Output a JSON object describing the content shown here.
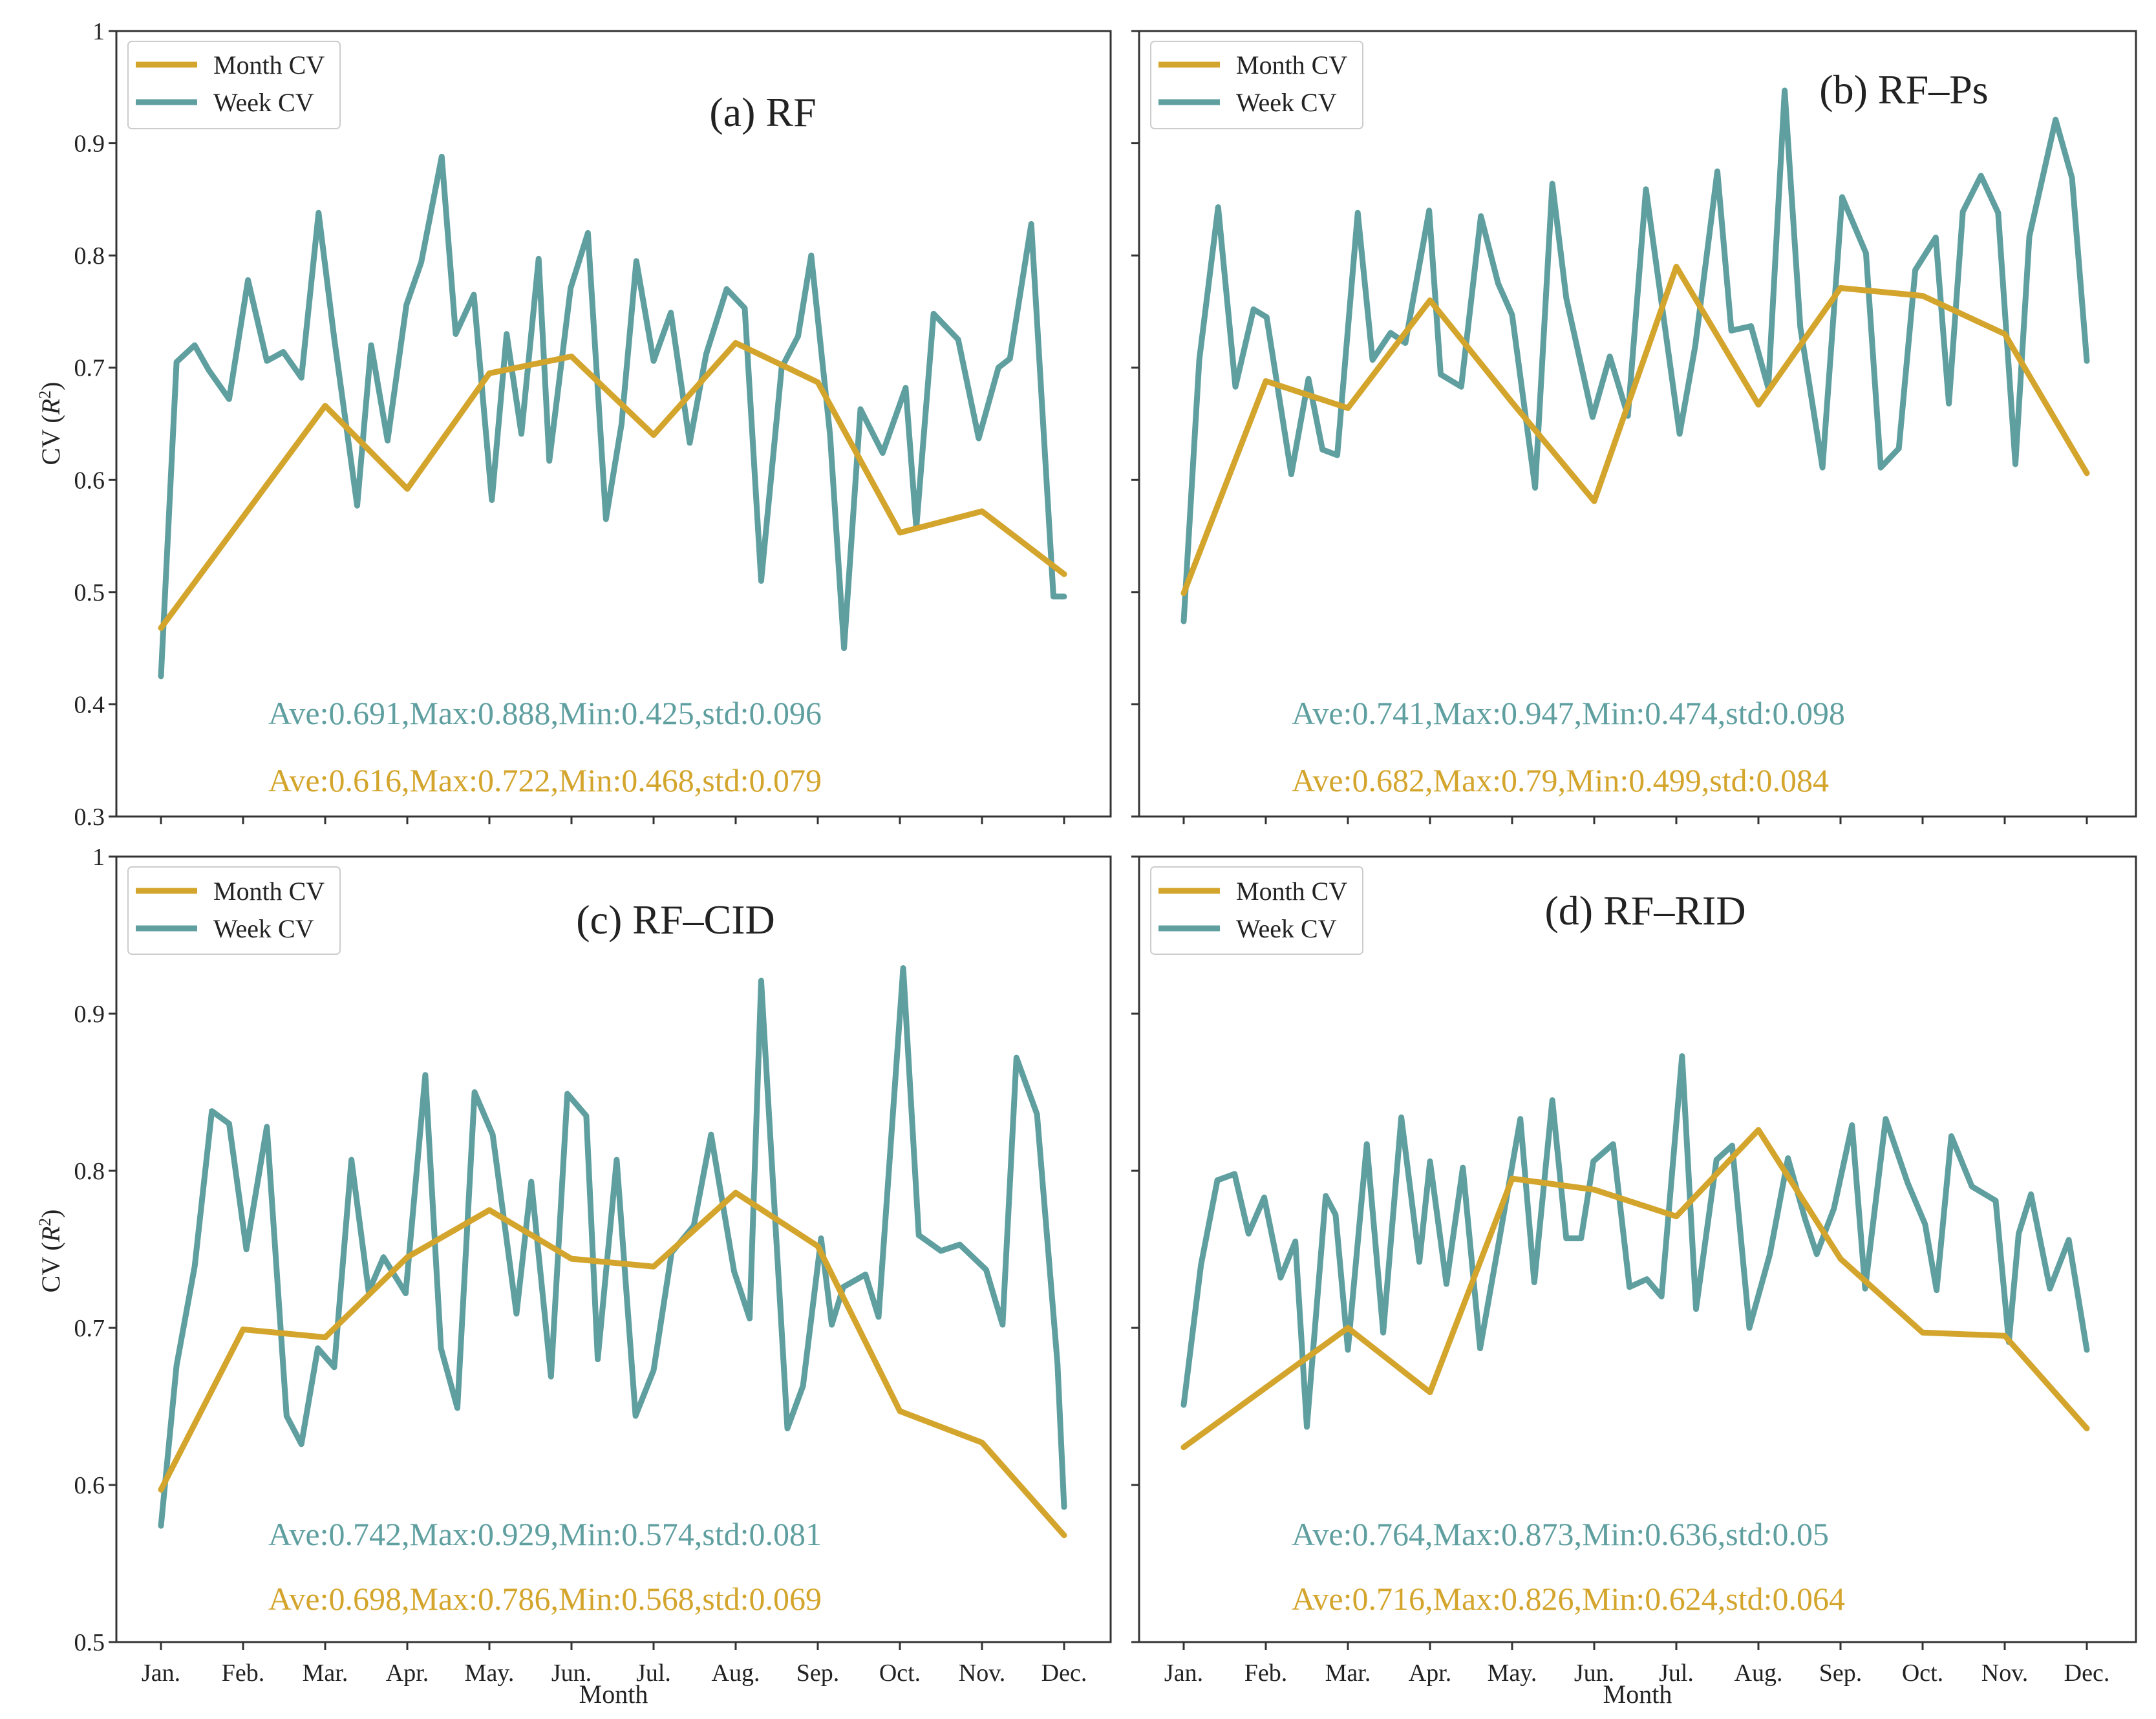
{
  "figure": {
    "xlabel": "Month",
    "ylabel_prefix": "CV (",
    "ylabel_var": "R",
    "ylabel_sup": "2",
    "ylabel_suffix": ")"
  },
  "colors": {
    "month_cv": "#D4A52C",
    "week_cv": "#5F9FA0"
  },
  "chart_data": [
    {
      "type": "line",
      "title": "(a) RF",
      "xlabel": "",
      "ylabel": "CV (R2)",
      "ylim": [
        0.3,
        1.0
      ],
      "yticks": [
        0.3,
        0.4,
        0.5,
        0.6,
        0.7,
        0.8,
        0.9,
        1.0
      ],
      "ytick_labels": [
        "0.3",
        "0.4",
        "0.5",
        "0.6",
        "0.7",
        "0.8",
        "0.9",
        "1"
      ],
      "x_range": [
        0.5,
        11.5
      ],
      "x_ticks": [
        0,
        1,
        2,
        3,
        4,
        5,
        6,
        7,
        8,
        9,
        10,
        11
      ],
      "x_tick_labels": [],
      "legend": [
        "Month CV",
        "Week CV"
      ],
      "series": [
        {
          "name": "Month CV",
          "x": [
            0,
            2,
            3,
            4,
            5,
            6,
            7,
            8,
            9,
            10,
            11
          ],
          "values": [
            0.468,
            0.666,
            0.592,
            0.695,
            0.71,
            0.64,
            0.722,
            0.687,
            0.553,
            0.572,
            0.516
          ]
        },
        {
          "name": "Week CV",
          "x": [
            0.0,
            0.19,
            0.41,
            0.58,
            0.83,
            1.06,
            1.29,
            1.49,
            1.71,
            1.92,
            2.11,
            2.39,
            2.56,
            2.76,
            2.99,
            3.17,
            3.42,
            3.59,
            3.81,
            4.03,
            4.21,
            4.39,
            4.6,
            4.73,
            4.99,
            5.2,
            5.42,
            5.61,
            5.79,
            6.0,
            6.21,
            6.44,
            6.64,
            6.89,
            7.11,
            7.31,
            7.56,
            7.76,
            7.92,
            8.15,
            8.32,
            8.52,
            8.79,
            9.07,
            9.2,
            9.41,
            9.71,
            9.96,
            10.2,
            10.34,
            10.6,
            10.87,
            11.0
          ],
          "values": [
            0.425,
            0.705,
            0.72,
            0.698,
            0.672,
            0.778,
            0.706,
            0.714,
            0.691,
            0.838,
            0.726,
            0.577,
            0.72,
            0.635,
            0.756,
            0.794,
            0.888,
            0.73,
            0.765,
            0.582,
            0.73,
            0.641,
            0.797,
            0.617,
            0.771,
            0.82,
            0.565,
            0.65,
            0.795,
            0.706,
            0.749,
            0.633,
            0.712,
            0.77,
            0.753,
            0.51,
            0.7,
            0.728,
            0.8,
            0.64,
            0.45,
            0.663,
            0.624,
            0.682,
            0.557,
            0.748,
            0.725,
            0.637,
            0.7,
            0.708,
            0.828,
            0.496,
            0.496
          ]
        }
      ],
      "stats_week": "Ave:0.691,Max:0.888,Min:0.425,std:0.096",
      "stats_month": "Ave:0.616,Max:0.722,Min:0.468,std:0.079"
    },
    {
      "type": "line",
      "title": "(b) RF–Ps",
      "xlabel": "",
      "ylabel": "",
      "ylim": [
        0.3,
        1.0
      ],
      "yticks": [
        0.3,
        0.4,
        0.5,
        0.6,
        0.7,
        0.8,
        0.9,
        1.0
      ],
      "ytick_labels": [],
      "x_range": [
        0.5,
        11.5
      ],
      "x_ticks": [
        0,
        1,
        2,
        3,
        4,
        5,
        6,
        7,
        8,
        9,
        10,
        11
      ],
      "x_tick_labels": [],
      "legend": [
        "Month CV",
        "Week CV"
      ],
      "series": [
        {
          "name": "Month CV",
          "x": [
            0,
            1,
            2,
            3,
            4,
            5,
            6,
            7,
            8,
            9,
            10,
            11
          ],
          "values": [
            0.499,
            0.688,
            0.664,
            0.76,
            0.669,
            0.581,
            0.79,
            0.667,
            0.771,
            0.764,
            0.73,
            0.606
          ]
        },
        {
          "name": "Week CV",
          "x": [
            0.0,
            0.19,
            0.42,
            0.63,
            0.85,
            1.01,
            1.31,
            1.52,
            1.69,
            1.87,
            2.12,
            2.3,
            2.52,
            2.7,
            2.99,
            3.13,
            3.38,
            3.62,
            3.83,
            4.0,
            4.28,
            4.49,
            4.66,
            4.98,
            5.19,
            5.41,
            5.63,
            6.04,
            6.23,
            6.5,
            6.67,
            6.91,
            7.12,
            7.32,
            7.51,
            7.78,
            8.02,
            8.31,
            8.49,
            8.71,
            8.91,
            9.16,
            9.32,
            9.49,
            9.71,
            9.92,
            10.13,
            10.3,
            10.62,
            10.82,
            11.0
          ],
          "values": [
            0.474,
            0.707,
            0.843,
            0.683,
            0.752,
            0.745,
            0.605,
            0.69,
            0.627,
            0.622,
            0.838,
            0.707,
            0.731,
            0.722,
            0.84,
            0.694,
            0.683,
            0.835,
            0.775,
            0.747,
            0.593,
            0.864,
            0.762,
            0.656,
            0.71,
            0.657,
            0.859,
            0.641,
            0.719,
            0.875,
            0.733,
            0.737,
            0.682,
            0.947,
            0.736,
            0.611,
            0.852,
            0.802,
            0.611,
            0.628,
            0.787,
            0.816,
            0.668,
            0.839,
            0.871,
            0.838,
            0.614,
            0.817,
            0.921,
            0.869,
            0.706
          ]
        }
      ],
      "stats_week": "Ave:0.741,Max:0.947,Min:0.474,std:0.098",
      "stats_month": "Ave:0.682,Max:0.79,Min:0.499,std:0.084"
    },
    {
      "type": "line",
      "title": "(c) RF–CID",
      "xlabel": "Month",
      "ylabel": "CV (R2)",
      "ylim": [
        0.5,
        1.0
      ],
      "yticks": [
        0.5,
        0.6,
        0.7,
        0.8,
        0.9,
        1.0
      ],
      "ytick_labels": [
        "0.5",
        "0.6",
        "0.7",
        "0.8",
        "0.9",
        "1"
      ],
      "x_range": [
        0.5,
        11.5
      ],
      "x_ticks": [
        0,
        1,
        2,
        3,
        4,
        5,
        6,
        7,
        8,
        9,
        10,
        11
      ],
      "x_tick_labels": [
        "Jan.",
        "Feb.",
        "Mar.",
        "Apr.",
        "May.",
        "Jun.",
        "Jul.",
        "Aug.",
        "Sep.",
        "Oct.",
        "Nov.",
        "Dec."
      ],
      "legend": [
        "Month CV",
        "Week CV"
      ],
      "series": [
        {
          "name": "Month CV",
          "x": [
            0,
            1,
            2,
            3,
            4,
            5,
            6,
            7,
            8,
            9,
            10,
            11
          ],
          "values": [
            0.597,
            0.699,
            0.694,
            0.745,
            0.775,
            0.744,
            0.739,
            0.786,
            0.752,
            0.647,
            0.627,
            0.568
          ]
        },
        {
          "name": "Week CV",
          "x": [
            0.0,
            0.19,
            0.41,
            0.62,
            0.83,
            1.04,
            1.29,
            1.53,
            1.71,
            1.91,
            2.11,
            2.32,
            2.53,
            2.71,
            2.98,
            3.22,
            3.41,
            3.61,
            3.82,
            4.04,
            4.33,
            4.51,
            4.75,
            4.95,
            5.18,
            5.32,
            5.55,
            5.78,
            6.0,
            6.22,
            6.49,
            6.7,
            6.98,
            7.17,
            7.31,
            7.63,
            7.82,
            8.04,
            8.17,
            8.31,
            8.58,
            8.74,
            9.04,
            9.23,
            9.5,
            9.73,
            10.05,
            10.25,
            10.42,
            10.67,
            10.92,
            11.0
          ],
          "values": [
            0.574,
            0.676,
            0.739,
            0.838,
            0.83,
            0.75,
            0.828,
            0.644,
            0.626,
            0.687,
            0.675,
            0.807,
            0.723,
            0.745,
            0.722,
            0.861,
            0.687,
            0.649,
            0.85,
            0.823,
            0.709,
            0.793,
            0.669,
            0.849,
            0.835,
            0.68,
            0.807,
            0.644,
            0.673,
            0.748,
            0.765,
            0.823,
            0.736,
            0.706,
            0.921,
            0.636,
            0.663,
            0.757,
            0.702,
            0.726,
            0.734,
            0.707,
            0.929,
            0.759,
            0.749,
            0.753,
            0.737,
            0.702,
            0.872,
            0.836,
            0.677,
            0.586
          ]
        }
      ],
      "stats_week": "Ave:0.742,Max:0.929,Min:0.574,std:0.081",
      "stats_month": "Ave:0.698,Max:0.786,Min:0.568,std:0.069"
    },
    {
      "type": "line",
      "title": "(d) RF–RID",
      "xlabel": "Month",
      "ylabel": "",
      "ylim": [
        0.5,
        1.0
      ],
      "yticks": [
        0.5,
        0.6,
        0.7,
        0.8,
        0.9,
        1.0
      ],
      "ytick_labels": [],
      "x_range": [
        0.5,
        11.5
      ],
      "x_ticks": [
        0,
        1,
        2,
        3,
        4,
        5,
        6,
        7,
        8,
        9,
        10,
        11
      ],
      "x_tick_labels": [
        "Jan.",
        "Feb.",
        "Mar.",
        "Apr.",
        "May.",
        "Jun.",
        "Jul.",
        "Aug.",
        "Sep.",
        "Oct.",
        "Nov.",
        "Dec."
      ],
      "legend": [
        "Month CV",
        "Week CV"
      ],
      "series": [
        {
          "name": "Month CV",
          "x": [
            0,
            2,
            3,
            4,
            5,
            6,
            7,
            8,
            9,
            10,
            11
          ],
          "values": [
            0.624,
            0.7,
            0.659,
            0.795,
            0.788,
            0.771,
            0.826,
            0.744,
            0.697,
            0.695,
            0.636
          ]
        },
        {
          "name": "Week CV",
          "x": [
            0.0,
            0.21,
            0.41,
            0.62,
            0.79,
            0.98,
            1.18,
            1.36,
            1.5,
            1.73,
            1.85,
            2.0,
            2.23,
            2.43,
            2.65,
            2.87,
            3.0,
            3.2,
            3.4,
            3.61,
            3.83,
            4.1,
            4.27,
            4.49,
            4.66,
            4.84,
            4.99,
            5.23,
            5.43,
            5.64,
            5.82,
            6.07,
            6.24,
            6.49,
            6.68,
            6.89,
            7.14,
            7.36,
            7.57,
            7.71,
            7.92,
            8.14,
            8.3,
            8.55,
            8.82,
            9.03,
            9.17,
            9.35,
            9.6,
            9.89,
            10.05,
            10.17,
            10.32,
            10.55,
            10.78,
            11.0
          ],
          "values": [
            0.651,
            0.74,
            0.794,
            0.798,
            0.76,
            0.783,
            0.732,
            0.755,
            0.637,
            0.784,
            0.772,
            0.686,
            0.817,
            0.697,
            0.834,
            0.742,
            0.806,
            0.728,
            0.802,
            0.687,
            0.752,
            0.833,
            0.729,
            0.845,
            0.757,
            0.757,
            0.806,
            0.817,
            0.726,
            0.731,
            0.72,
            0.873,
            0.712,
            0.807,
            0.816,
            0.7,
            0.747,
            0.808,
            0.769,
            0.747,
            0.776,
            0.829,
            0.725,
            0.833,
            0.792,
            0.766,
            0.724,
            0.822,
            0.79,
            0.781,
            0.691,
            0.76,
            0.785,
            0.725,
            0.756,
            0.686
          ]
        }
      ],
      "stats_week": "Ave:0.764,Max:0.873,Min:0.636,std:0.05",
      "stats_month": "Ave:0.716,Max:0.826,Min:0.624,std:0.064"
    }
  ]
}
